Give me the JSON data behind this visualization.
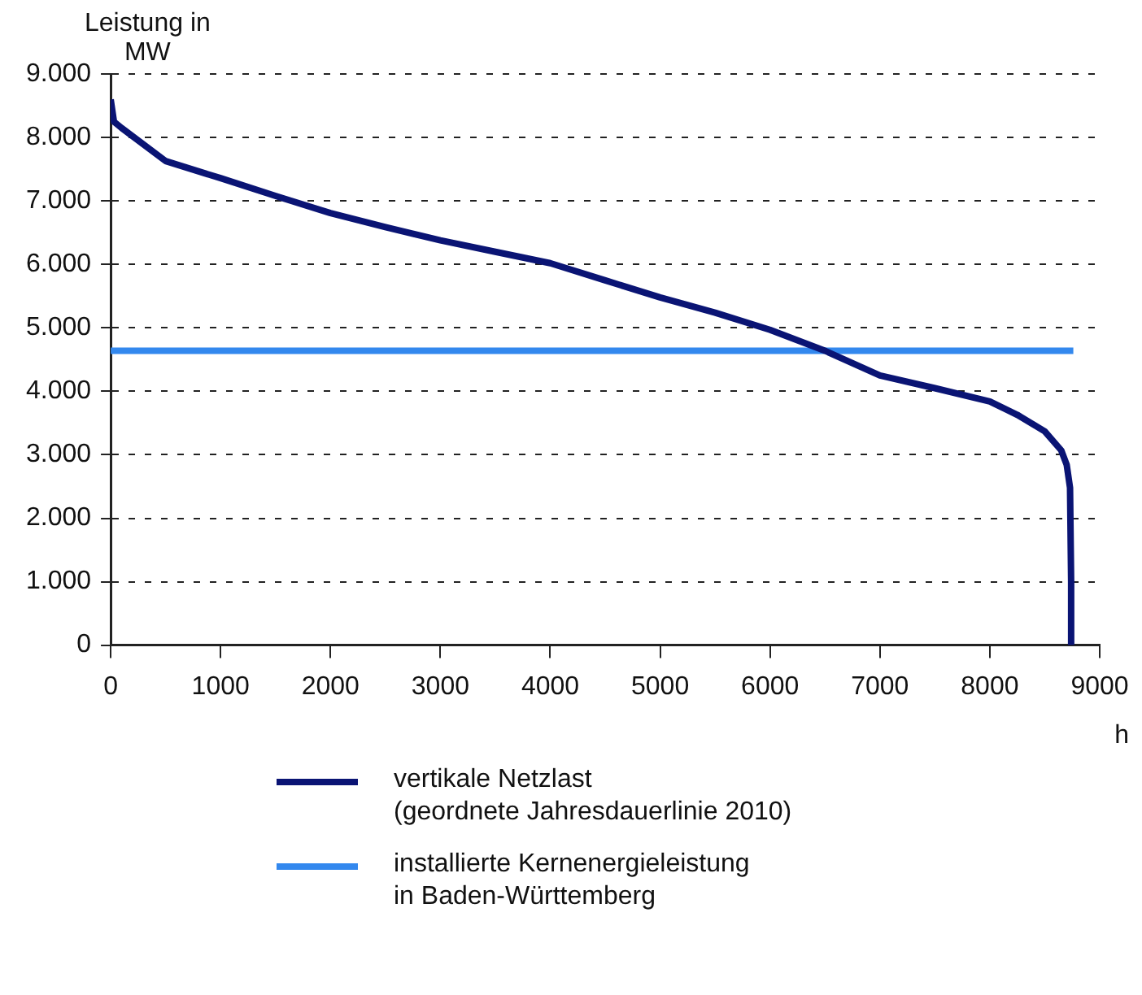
{
  "chart_data": {
    "type": "line",
    "ylabel": "Leistung in\nMW",
    "xlabel": "h",
    "xlim": [
      0,
      9000
    ],
    "xticks": [
      0,
      1000,
      2000,
      3000,
      4000,
      5000,
      6000,
      7000,
      8000,
      9000
    ],
    "ylim": [
      0,
      9000
    ],
    "yticks": [
      {
        "value": 0,
        "label": "0"
      },
      {
        "value": 1000,
        "label": "1.000"
      },
      {
        "value": 2000,
        "label": "2.000"
      },
      {
        "value": 3000,
        "label": "3.000"
      },
      {
        "value": 4000,
        "label": "4.000"
      },
      {
        "value": 5000,
        "label": "5.000"
      },
      {
        "value": 6000,
        "label": "6.000"
      },
      {
        "value": 7000,
        "label": "7.000"
      },
      {
        "value": 8000,
        "label": "8.000"
      },
      {
        "value": 9000,
        "label": "9.000"
      }
    ],
    "grid": "y",
    "legend": "bottom",
    "marker": "none",
    "line_style": "solid",
    "series": [
      {
        "name": "vertikale Netzlast\n(geordnete Jahresdauerlinie 2010)",
        "color": "#0a1474",
        "x": [
          0,
          30,
          100,
          500,
          1000,
          1500,
          2000,
          2500,
          3000,
          3500,
          4000,
          4500,
          5000,
          5500,
          6000,
          6500,
          7000,
          7500,
          8000,
          8250,
          8500,
          8650,
          8700,
          8730,
          8740,
          8740
        ],
        "values": [
          8600,
          8250,
          8150,
          7630,
          7360,
          7080,
          6810,
          6590,
          6380,
          6200,
          6020,
          5750,
          5480,
          5240,
          4970,
          4640,
          4250,
          4050,
          3840,
          3630,
          3370,
          3070,
          2840,
          2480,
          1000,
          0
        ]
      },
      {
        "name": "installierte Kernenergieleistung\nin Baden-Württemberg",
        "color": "#3388ee",
        "x": [
          0,
          8760
        ],
        "values": [
          4640,
          4640
        ]
      }
    ]
  }
}
